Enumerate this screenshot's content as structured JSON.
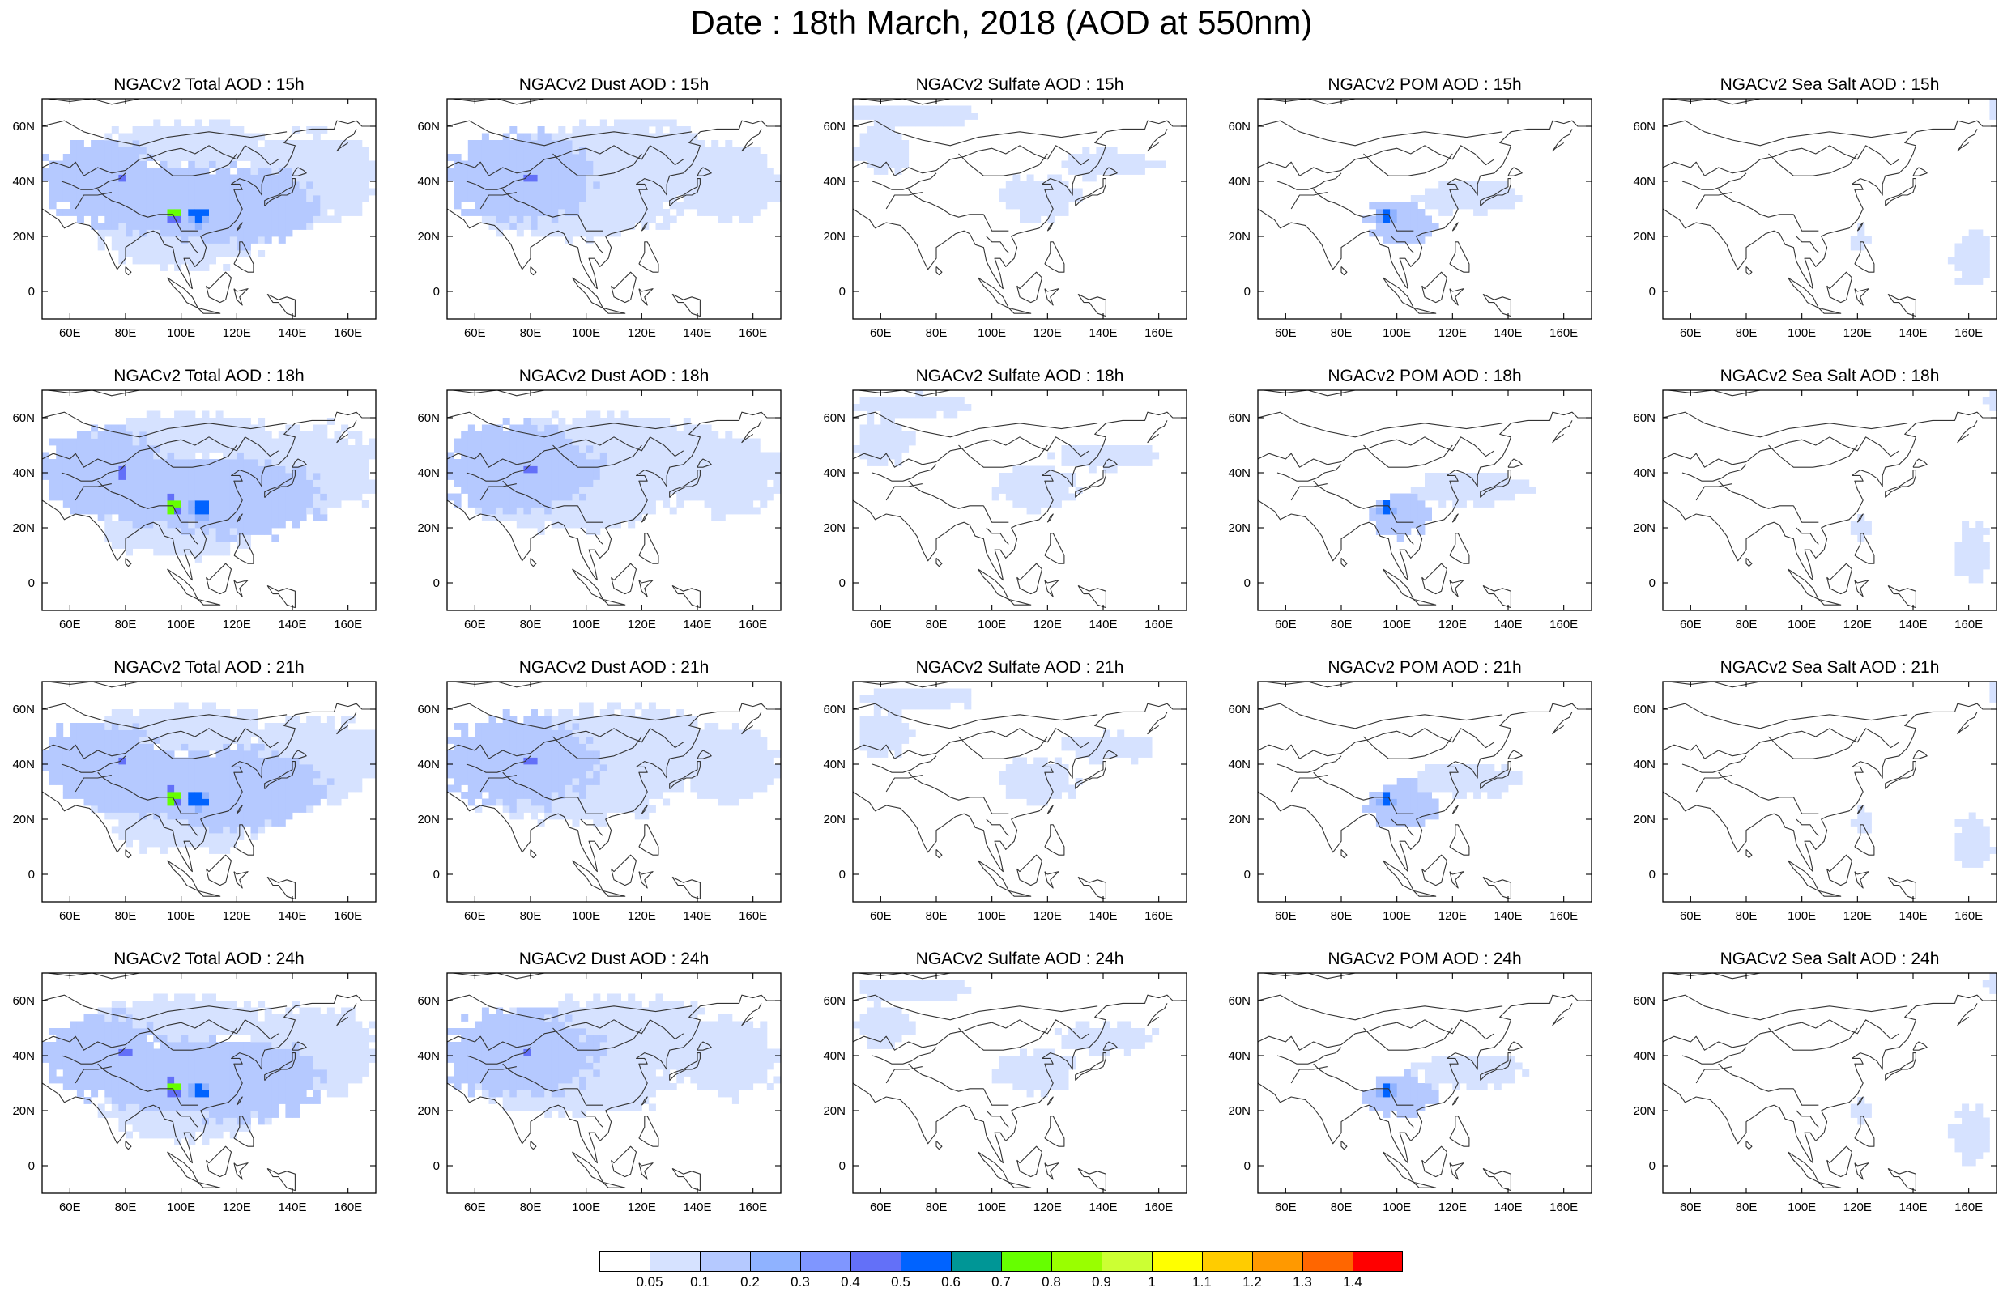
{
  "title": "Date : 18th March, 2018 (AOD at 550nm)",
  "axes": {
    "lat_ticks": [
      "60N",
      "40N",
      "20N",
      "0"
    ],
    "lon_ticks": [
      "60E",
      "80E",
      "100E",
      "120E",
      "140E",
      "160E"
    ],
    "lon_range": [
      50,
      170
    ],
    "lat_range": [
      -10,
      70
    ]
  },
  "panel_titles": [
    [
      "NGACv2 Total AOD : 15h",
      "NGACv2 Dust AOD : 15h",
      "NGACv2 Sulfate AOD : 15h",
      "NGACv2 POM AOD : 15h",
      "NGACv2 Sea Salt AOD : 15h"
    ],
    [
      "NGACv2 Total AOD : 18h",
      "NGACv2 Dust AOD : 18h",
      "NGACv2 Sulfate AOD : 18h",
      "NGACv2 POM AOD : 18h",
      "NGACv2 Sea Salt AOD : 18h"
    ],
    [
      "NGACv2 Total AOD : 21h",
      "NGACv2 Dust AOD : 21h",
      "NGACv2 Sulfate AOD : 21h",
      "NGACv2 POM AOD : 21h",
      "NGACv2 Sea Salt AOD : 21h"
    ],
    [
      "NGACv2 Total AOD : 24h",
      "NGACv2 Dust AOD : 24h",
      "NGACv2 Sulfate AOD : 24h",
      "NGACv2 POM AOD : 24h",
      "NGACv2 Sea Salt  AOD : 24h"
    ]
  ],
  "colorbar": {
    "labels": [
      "0.05",
      "0.1",
      "0.2",
      "0.3",
      "0.4",
      "0.5",
      "0.6",
      "0.7",
      "0.8",
      "0.9",
      "1",
      "1.1",
      "1.2",
      "1.3",
      "1.4"
    ],
    "colors": [
      "#ffffff",
      "#d6e2ff",
      "#b5c9ff",
      "#8fb2ff",
      "#7f96ff",
      "#6370f8",
      "#0063ff",
      "#009696",
      "#66ff00",
      "#99ff00",
      "#ccff33",
      "#ffff00",
      "#ffcc00",
      "#ff9900",
      "#ff6600",
      "#ff0000"
    ]
  },
  "aod_fields": {
    "total": [
      {
        "lon": 70,
        "lat": 40,
        "rx": 22,
        "ry": 14,
        "level": 2
      },
      {
        "lon": 100,
        "lat": 52,
        "rx": 30,
        "ry": 8,
        "level": 1
      },
      {
        "lon": 95,
        "lat": 32,
        "rx": 38,
        "ry": 12,
        "level": 2
      },
      {
        "lon": 120,
        "lat": 30,
        "rx": 30,
        "ry": 14,
        "level": 2
      },
      {
        "lon": 145,
        "lat": 40,
        "rx": 25,
        "ry": 16,
        "level": 1
      },
      {
        "lon": 100,
        "lat": 20,
        "rx": 30,
        "ry": 12,
        "level": 1
      },
      {
        "lon": 78,
        "lat": 40,
        "rx": 3,
        "ry": 3,
        "level": 5
      },
      {
        "lon": 96,
        "lat": 27,
        "rx": 3,
        "ry": 3,
        "level": 8
      },
      {
        "lon": 105,
        "lat": 26,
        "rx": 4,
        "ry": 4,
        "level": 6
      }
    ],
    "dust": [
      {
        "lon": 75,
        "lat": 40,
        "rx": 28,
        "ry": 16,
        "level": 2
      },
      {
        "lon": 110,
        "lat": 45,
        "rx": 40,
        "ry": 15,
        "level": 1
      },
      {
        "lon": 150,
        "lat": 38,
        "rx": 18,
        "ry": 14,
        "level": 1
      },
      {
        "lon": 95,
        "lat": 28,
        "rx": 35,
        "ry": 10,
        "level": 1
      },
      {
        "lon": 78,
        "lat": 40,
        "rx": 3,
        "ry": 3,
        "level": 5
      }
    ],
    "sulfate": [
      {
        "lon": 72,
        "lat": 63,
        "rx": 22,
        "ry": 4,
        "level": 1
      },
      {
        "lon": 60,
        "lat": 50,
        "rx": 10,
        "ry": 8,
        "level": 1
      },
      {
        "lon": 115,
        "lat": 33,
        "rx": 14,
        "ry": 8,
        "level": 1
      },
      {
        "lon": 140,
        "lat": 45,
        "rx": 18,
        "ry": 5,
        "level": 1
      }
    ],
    "pom": [
      {
        "lon": 100,
        "lat": 24,
        "rx": 12,
        "ry": 8,
        "level": 2
      },
      {
        "lon": 125,
        "lat": 33,
        "rx": 20,
        "ry": 6,
        "level": 1
      },
      {
        "lon": 95,
        "lat": 26,
        "rx": 3,
        "ry": 3,
        "level": 6
      }
    ],
    "seasalt": [
      {
        "lon": 160,
        "lat": 10,
        "rx": 7,
        "ry": 10,
        "level": 1
      },
      {
        "lon": 168,
        "lat": 65,
        "rx": 3,
        "ry": 5,
        "level": 1
      },
      {
        "lon": 120,
        "lat": 18,
        "rx": 3,
        "ry": 5,
        "level": 1
      }
    ]
  }
}
